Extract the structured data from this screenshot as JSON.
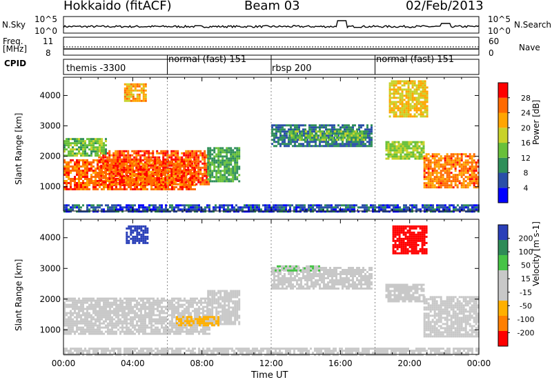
{
  "header": {
    "site": "Hokkaido (fitACF)",
    "beam": "Beam 03",
    "date": "02/Feb/2013"
  },
  "noise_panel": {
    "left_label": "N.Sky",
    "right_label": "N.Search",
    "left_ticks": [
      "10^5",
      "10^0"
    ],
    "right_ticks": [
      "10^5",
      "10^0"
    ]
  },
  "freq_panel": {
    "left_label_line1": "Freq.",
    "left_label_line2": "[MHz]",
    "left_ticks": [
      "11",
      "8"
    ],
    "right_label": "Nave",
    "right_ticks": [
      "60",
      "0"
    ]
  },
  "cpid": {
    "label": "CPID",
    "segments": [
      {
        "name": "themis -3300",
        "start_h": 0,
        "end_h": 6
      },
      {
        "name": "normal (fast) 151",
        "start_h": 6,
        "end_h": 12
      },
      {
        "name": "rbsp 200",
        "start_h": 12,
        "end_h": 18
      },
      {
        "name": "normal (fast) 151",
        "start_h": 18,
        "end_h": 24
      }
    ]
  },
  "colors": {
    "power": [
      "#0000ff",
      "#2a4fa8",
      "#2f8f5a",
      "#68c03a",
      "#c8d22a",
      "#ffa500",
      "#ff6a00",
      "#ff0000"
    ],
    "velocity": [
      "#ff0000",
      "#ff7f00",
      "#ffb000",
      "#c8c8c8",
      "#c8c8c8",
      "#46c346",
      "#2e8b57",
      "#2a3fb8"
    ],
    "ground": "#c0c0c0"
  },
  "chart_data": [
    {
      "type": "heatmap",
      "panel": "power",
      "xlabel": "",
      "ylabel": "Slant Range [km]",
      "xlim": [
        0,
        24
      ],
      "ylim": [
        200,
        4600
      ],
      "yticks": [
        1000,
        2000,
        3000,
        4000
      ],
      "colorbar": {
        "label": "Power [dB]",
        "ticks": [
          "28",
          "24",
          "20",
          "16",
          "12",
          "8",
          "4"
        ],
        "range": [
          0,
          32
        ]
      },
      "regions": [
        {
          "t0": 0.0,
          "t1": 7.6,
          "r0": 900,
          "r1": 1900,
          "value": 26
        },
        {
          "t0": 2.0,
          "t1": 8.4,
          "r0": 1100,
          "r1": 2200,
          "value": 27
        },
        {
          "t0": 0.0,
          "t1": 2.5,
          "r0": 2000,
          "r1": 2600,
          "value": 14
        },
        {
          "t0": 8.3,
          "t1": 10.2,
          "r0": 1200,
          "r1": 2300,
          "value": 12
        },
        {
          "t0": 12.0,
          "t1": 17.8,
          "r0": 2350,
          "r1": 3050,
          "value": 8
        },
        {
          "t0": 13.0,
          "t1": 17.5,
          "r0": 2550,
          "r1": 2850,
          "value": 14
        },
        {
          "t0": 18.6,
          "t1": 20.8,
          "r0": 1900,
          "r1": 2500,
          "value": 16
        },
        {
          "t0": 20.8,
          "t1": 24.0,
          "r0": 950,
          "r1": 2100,
          "value": 25
        },
        {
          "t0": 18.8,
          "t1": 21.0,
          "r0": 3300,
          "r1": 4500,
          "value": 20
        },
        {
          "t0": 3.5,
          "t1": 4.8,
          "r0": 3850,
          "r1": 4400,
          "value": 22
        },
        {
          "t0": 0.0,
          "t1": 24.0,
          "r0": 200,
          "r1": 420,
          "value": 6
        }
      ]
    },
    {
      "type": "heatmap",
      "panel": "velocity",
      "xlabel": "Time UT",
      "ylabel": "Slant Range [km]",
      "xlim": [
        0,
        24
      ],
      "ylim": [
        200,
        4600
      ],
      "yticks": [
        1000,
        2000,
        3000,
        4000
      ],
      "xticks": [
        "00:00",
        "04:00",
        "08:00",
        "12:00",
        "16:00",
        "20:00",
        "00:00"
      ],
      "colorbar": {
        "label": "Velocity [m s-1]",
        "ticks": [
          "200",
          "100",
          "50",
          "15",
          "-15",
          "-50",
          "-100",
          "-200"
        ],
        "range": [
          -250,
          250
        ]
      },
      "regions": [
        {
          "t0": 0.0,
          "t1": 8.4,
          "r0": 900,
          "r1": 2050,
          "value": 0
        },
        {
          "t0": 8.3,
          "t1": 10.2,
          "r0": 1200,
          "r1": 2300,
          "value": 0
        },
        {
          "t0": 12.0,
          "t1": 17.8,
          "r0": 2350,
          "r1": 3050,
          "value": 0
        },
        {
          "t0": 12.2,
          "t1": 14.8,
          "r0": 2900,
          "r1": 3100,
          "value": 60
        },
        {
          "t0": 18.6,
          "t1": 20.8,
          "r0": 1900,
          "r1": 2500,
          "value": 40
        },
        {
          "t0": 20.8,
          "t1": 24.0,
          "r0": 800,
          "r1": 2100,
          "value": 0
        },
        {
          "t0": 19.0,
          "t1": 21.0,
          "r0": 3500,
          "r1": 4400,
          "value": -200
        },
        {
          "t0": 3.6,
          "t1": 4.8,
          "r0": 3850,
          "r1": 4400,
          "value": 220
        },
        {
          "t0": 6.5,
          "t1": 9.0,
          "r0": 1150,
          "r1": 1450,
          "value": -70
        },
        {
          "t0": 0.0,
          "t1": 24.0,
          "r0": 200,
          "r1": 420,
          "value": -40
        }
      ]
    }
  ]
}
